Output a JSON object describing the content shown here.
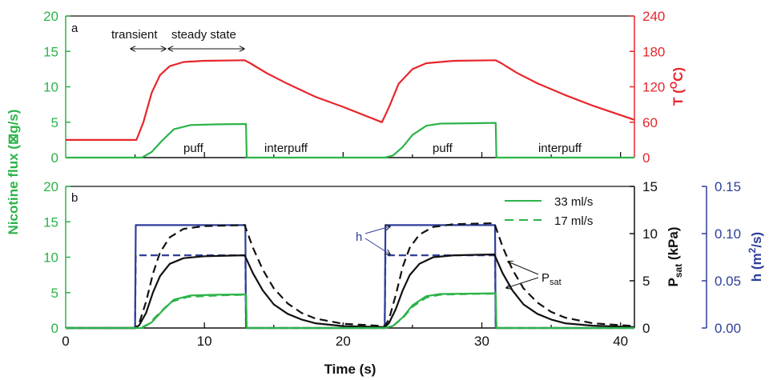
{
  "colors": {
    "green": "#2db34a",
    "red": "#e8262b",
    "blue": "#2e3f99",
    "black": "#111111"
  },
  "chart_data": [
    {
      "panel_label": "a",
      "type": "line",
      "xlim": [
        0,
        41
      ],
      "ylim_left": [
        0,
        20
      ],
      "ylim_right": [
        0,
        240
      ],
      "yticks_left": [
        "0",
        "5",
        "10",
        "15",
        "20"
      ],
      "yticks_right": [
        "0",
        "60",
        "120",
        "180",
        "240"
      ],
      "ylabel_left": "Nicotine flux (⊠g/s)",
      "ylabel_right_main": "T (",
      "ylabel_right_sup": "O",
      "ylabel_right_tail": "C)",
      "annotations": {
        "transient": "transient",
        "steady_state": "steady state",
        "puff1": "puff",
        "interpuff1": "interpuff",
        "puff2": "puff",
        "interpuff2": "interpuff"
      },
      "series": [
        {
          "axis": "right",
          "color": "red",
          "style": "solid",
          "points": [
            [
              0,
              30
            ],
            [
              5.1,
              30
            ],
            [
              5.6,
              60
            ],
            [
              6.2,
              110
            ],
            [
              6.8,
              140
            ],
            [
              7.5,
              155
            ],
            [
              8.5,
              162
            ],
            [
              10,
              164
            ],
            [
              12.9,
              165
            ],
            [
              13.3,
              160
            ],
            [
              14.5,
              143
            ],
            [
              16,
              125
            ],
            [
              18,
              103
            ],
            [
              20,
              86
            ],
            [
              22.8,
              60
            ],
            [
              23.3,
              85
            ],
            [
              24,
              125
            ],
            [
              25,
              150
            ],
            [
              26,
              160
            ],
            [
              28,
              164
            ],
            [
              31,
              165
            ],
            [
              31.4,
              160
            ],
            [
              32.5,
              144
            ],
            [
              34,
              126
            ],
            [
              36,
              106
            ],
            [
              38,
              88
            ],
            [
              41,
              64
            ]
          ]
        },
        {
          "axis": "left",
          "color": "green",
          "style": "solid",
          "points": [
            [
              0,
              0
            ],
            [
              5.5,
              0
            ],
            [
              6.2,
              0.8
            ],
            [
              7,
              2.5
            ],
            [
              7.8,
              4
            ],
            [
              9,
              4.6
            ],
            [
              11,
              4.7
            ],
            [
              13,
              4.75
            ],
            [
              13.05,
              0
            ],
            [
              23,
              0
            ],
            [
              23.6,
              0.3
            ],
            [
              24.3,
              1.5
            ],
            [
              25,
              3.2
            ],
            [
              26,
              4.5
            ],
            [
              27,
              4.8
            ],
            [
              29,
              4.85
            ],
            [
              31,
              4.9
            ],
            [
              31.05,
              0
            ],
            [
              41,
              0
            ]
          ]
        }
      ]
    },
    {
      "panel_label": "b",
      "type": "line",
      "xlim": [
        0,
        41
      ],
      "xticks": [
        "0",
        "10",
        "20",
        "30",
        "40"
      ],
      "xlabel": "Time (s)",
      "ylim_left": [
        0,
        20
      ],
      "ylim_right": [
        0,
        15
      ],
      "ylim_far_right": [
        0,
        0.15
      ],
      "yticks_left": [
        "0",
        "5",
        "10",
        "15",
        "20"
      ],
      "yticks_right": [
        "0",
        "5",
        "10",
        "15"
      ],
      "yticks_far_right": [
        "0.00",
        "0.05",
        "0.10",
        "0.15"
      ],
      "ylabel_left": "Nicotine flux (⊠g/s)",
      "ylabel_right_main": "P",
      "ylabel_right_sub": "sat",
      "ylabel_right_tail": " (kPa)",
      "ylabel_far_right_main": "h (m",
      "ylabel_far_right_sup": "2",
      "ylabel_far_right_tail": "/s)",
      "legend": {
        "position": "top-right",
        "entries": [
          {
            "label": "33 ml/s",
            "style": "solid"
          },
          {
            "label": "17 ml/s",
            "style": "dashed"
          }
        ]
      },
      "annotations": {
        "h_label": "h",
        "psat_main": "P",
        "psat_sub": "sat"
      },
      "series": [
        {
          "axis": "far_right",
          "color": "blue",
          "style": "solid",
          "points": [
            [
              0,
              0
            ],
            [
              5,
              0
            ],
            [
              5.05,
              0.109
            ],
            [
              12.95,
              0.109
            ],
            [
              13,
              0
            ],
            [
              23,
              0
            ],
            [
              23.05,
              0.109
            ],
            [
              30.95,
              0.109
            ],
            [
              31,
              0
            ],
            [
              41,
              0
            ]
          ]
        },
        {
          "axis": "far_right",
          "color": "blue",
          "style": "dashed",
          "points": [
            [
              0,
              0
            ],
            [
              5,
              0
            ],
            [
              5.05,
              0.077
            ],
            [
              12.95,
              0.077
            ],
            [
              13,
              0
            ],
            [
              23,
              0
            ],
            [
              23.05,
              0.077
            ],
            [
              30.95,
              0.077
            ],
            [
              31,
              0
            ],
            [
              41,
              0
            ]
          ]
        },
        {
          "axis": "right",
          "color": "black",
          "style": "solid",
          "points": [
            [
              0,
              0
            ],
            [
              5,
              0
            ],
            [
              5.3,
              0.3
            ],
            [
              5.8,
              1.6
            ],
            [
              6.3,
              3.8
            ],
            [
              6.8,
              5.5
            ],
            [
              7.5,
              6.8
            ],
            [
              8.5,
              7.4
            ],
            [
              10,
              7.6
            ],
            [
              12.9,
              7.7
            ],
            [
              13.5,
              5.8
            ],
            [
              14.2,
              4
            ],
            [
              15,
              2.5
            ],
            [
              16,
              1.5
            ],
            [
              17,
              0.9
            ],
            [
              18,
              0.5
            ],
            [
              20,
              0.2
            ],
            [
              23,
              0.1
            ],
            [
              23.3,
              0.5
            ],
            [
              23.8,
              2
            ],
            [
              24.3,
              4
            ],
            [
              24.8,
              5.6
            ],
            [
              25.5,
              6.8
            ],
            [
              26.5,
              7.5
            ],
            [
              28,
              7.7
            ],
            [
              30.9,
              7.8
            ],
            [
              31.5,
              5.8
            ],
            [
              32.2,
              4
            ],
            [
              33,
              2.5
            ],
            [
              34,
              1.5
            ],
            [
              35,
              0.9
            ],
            [
              36,
              0.5
            ],
            [
              38,
              0.25
            ],
            [
              41,
              0.1
            ]
          ]
        },
        {
          "axis": "right",
          "color": "black",
          "style": "dashed",
          "points": [
            [
              0,
              0
            ],
            [
              5,
              0
            ],
            [
              5.3,
              0.5
            ],
            [
              5.8,
              2.8
            ],
            [
              6.3,
              5.8
            ],
            [
              6.8,
              8
            ],
            [
              7.5,
              9.6
            ],
            [
              8.5,
              10.5
            ],
            [
              10,
              10.8
            ],
            [
              12.9,
              10.9
            ],
            [
              13.5,
              8.5
            ],
            [
              14.2,
              6.2
            ],
            [
              15,
              4.2
            ],
            [
              16,
              2.6
            ],
            [
              17,
              1.6
            ],
            [
              18,
              1
            ],
            [
              20,
              0.45
            ],
            [
              23,
              0.2
            ],
            [
              23.3,
              0.9
            ],
            [
              23.8,
              3.5
            ],
            [
              24.3,
              6.5
            ],
            [
              24.8,
              8.5
            ],
            [
              25.5,
              9.9
            ],
            [
              26.5,
              10.7
            ],
            [
              28,
              11
            ],
            [
              30.9,
              11.1
            ],
            [
              31.5,
              8.6
            ],
            [
              32.2,
              6.2
            ],
            [
              33,
              4.2
            ],
            [
              34,
              2.7
            ],
            [
              35,
              1.7
            ],
            [
              36,
              1.1
            ],
            [
              38,
              0.5
            ],
            [
              41,
              0.2
            ]
          ]
        },
        {
          "axis": "left",
          "color": "green",
          "style": "dashed",
          "points": [
            [
              0,
              0
            ],
            [
              5.4,
              0
            ],
            [
              6,
              0.6
            ],
            [
              6.8,
              2.2
            ],
            [
              7.6,
              3.7
            ],
            [
              8.8,
              4.4
            ],
            [
              11,
              4.6
            ],
            [
              13,
              4.7
            ],
            [
              13.05,
              0
            ],
            [
              23,
              0
            ],
            [
              23.6,
              0.3
            ],
            [
              24.3,
              1.4
            ],
            [
              25,
              3
            ],
            [
              26,
              4.3
            ],
            [
              27,
              4.7
            ],
            [
              29,
              4.8
            ],
            [
              31,
              4.85
            ],
            [
              31.05,
              0
            ],
            [
              41,
              0
            ]
          ]
        },
        {
          "axis": "left",
          "color": "green",
          "style": "solid",
          "points": [
            [
              0,
              0
            ],
            [
              5.5,
              0
            ],
            [
              6.2,
              0.8
            ],
            [
              7,
              2.5
            ],
            [
              7.8,
              4
            ],
            [
              9,
              4.6
            ],
            [
              11,
              4.7
            ],
            [
              13,
              4.75
            ],
            [
              13.05,
              0
            ],
            [
              23,
              0
            ],
            [
              23.6,
              0.3
            ],
            [
              24.3,
              1.5
            ],
            [
              25,
              3.2
            ],
            [
              26,
              4.5
            ],
            [
              27,
              4.8
            ],
            [
              29,
              4.85
            ],
            [
              31,
              4.9
            ],
            [
              31.05,
              0
            ],
            [
              41,
              0
            ]
          ]
        }
      ]
    }
  ]
}
